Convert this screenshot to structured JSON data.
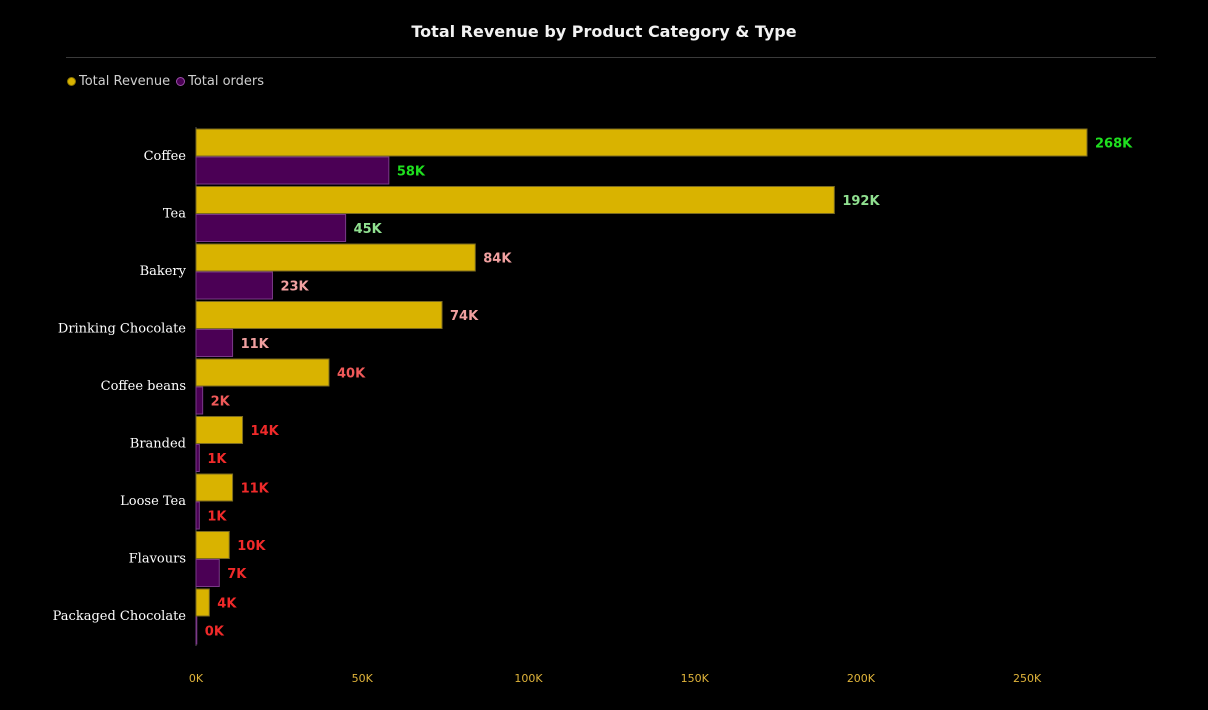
{
  "chart_data": {
    "type": "bar",
    "orientation": "horizontal",
    "title": "Total Revenue by Product Category & Type",
    "categories": [
      "Coffee",
      "Tea",
      "Bakery",
      "Drinking Chocolate",
      "Coffee beans",
      "Branded",
      "Loose Tea",
      "Flavours",
      "Packaged Chocolate"
    ],
    "series": [
      {
        "name": "Total Revenue",
        "color": "#d9b300",
        "values": [
          268000,
          192000,
          84000,
          74000,
          40000,
          14000,
          11000,
          10000,
          4000
        ],
        "labels": [
          "268K",
          "192K",
          "84K",
          "74K",
          "40K",
          "14K",
          "11K",
          "10K",
          "4K"
        ],
        "label_colors": [
          "#1fe01f",
          "#90e090",
          "#f0a0a0",
          "#f0a0a0",
          "#f05a5a",
          "#f02a2a",
          "#f02a2a",
          "#f02a2a",
          "#f02a2a"
        ]
      },
      {
        "name": "Total orders",
        "color": "#4b0055",
        "values": [
          58000,
          45000,
          23000,
          11000,
          2000,
          1000,
          1000,
          7000,
          0
        ],
        "labels": [
          "58K",
          "45K",
          "23K",
          "11K",
          "2K",
          "1K",
          "1K",
          "7K",
          "0K"
        ],
        "label_colors": [
          "#1fe01f",
          "#90e090",
          "#f0a0a0",
          "#f0a0a0",
          "#f05a5a",
          "#f02a2a",
          "#f02a2a",
          "#f02a2a",
          "#f02a2a"
        ]
      }
    ],
    "xlim": [
      0,
      268000
    ],
    "xticks": [
      0,
      50000,
      100000,
      150000,
      200000,
      250000
    ],
    "xtick_labels": [
      "0K",
      "50K",
      "100K",
      "150K",
      "200K",
      "250K"
    ],
    "legend_position": "top-left",
    "grid": false
  }
}
